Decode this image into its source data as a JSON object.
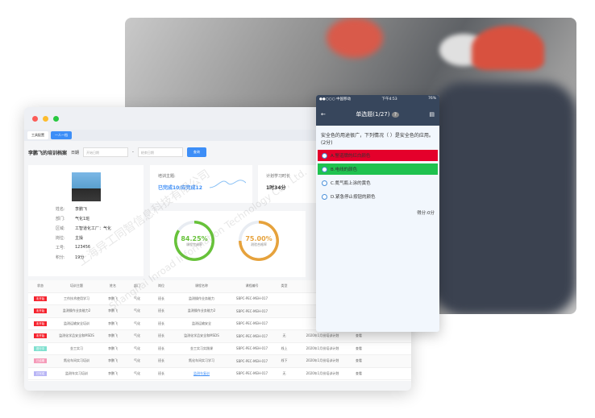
{
  "window": {
    "tabs": [
      {
        "label": "工具配置"
      },
      {
        "label": "一人一档"
      }
    ],
    "title": "李鹏飞的培训档案",
    "date_label": "日期",
    "start_placeholder": "开始日期",
    "end_placeholder": "结束日期",
    "search_label": "查询"
  },
  "profile": {
    "fields": [
      {
        "k": "姓名:",
        "v": "李鹏飞"
      },
      {
        "k": "部门:",
        "v": "气化1班"
      },
      {
        "k": "区域:",
        "v": "工智道化工厂：气化"
      },
      {
        "k": "岗位:",
        "v": "主操"
      },
      {
        "k": "工号:",
        "v": "123456"
      },
      {
        "k": "积分:",
        "v": "19分"
      }
    ]
  },
  "summary": {
    "topic_label": "培训主题:",
    "topic_value": "已完成10/应完成12",
    "hours_label": "计划学习时长",
    "hours_value": "1时34分"
  },
  "rings": [
    {
      "value": "84.25%",
      "label": "课程完成率",
      "percent": 84.25,
      "color": "#67c23a"
    },
    {
      "value": "75.00%",
      "label": "测验合格率",
      "percent": 75,
      "color": "#e6a23c"
    }
  ],
  "table": {
    "headers": [
      "状态",
      "培训主题",
      "姓名",
      "部门",
      "岗位",
      "课程名称",
      "课程编号",
      "类型",
      "计划",
      "备注"
    ],
    "rows": [
      {
        "status": "未开始",
        "color": "#f5222d",
        "cells": [
          "工作技术使用学习",
          "李鹏飞",
          "气化",
          "班长",
          "监测操作业务能力",
          "SBPC-PEC-MEH-017",
          "",
          "",
          ""
        ]
      },
      {
        "status": "未开始",
        "color": "#f5222d",
        "cells": [
          "监测操作业务能力2",
          "李鹏飞",
          "气化",
          "班长",
          "监测操作业务能力2",
          "SBPC-PEC-MEH-017",
          "",
          "",
          ""
        ]
      },
      {
        "status": "未开始",
        "color": "#f5222d",
        "cells": [
          "监测运输安全培训",
          "李鹏飞",
          "气化",
          "班长",
          "监测运输安全",
          "SBPC-PEC-MEH-017",
          "",
          "",
          ""
        ]
      },
      {
        "status": "未开始",
        "color": "#f5222d",
        "cells": [
          "监测化学品安全和MSDS",
          "李鹏飞",
          "气化",
          "班长",
          "监测化学品安全和MSDS",
          "SBPC-PEC-MEH-017",
          "无",
          "2020年1月份培训计划",
          "查看"
        ]
      },
      {
        "status": "进行中",
        "color": "#7fe0cf",
        "cells": [
          "金工实习",
          "李鹏飞",
          "气化",
          "班长",
          "金工实习实践课",
          "SBPC-PEC-MEH-017",
          "线上",
          "2020年1月份培训计划",
          "查看"
        ]
      },
      {
        "status": "已逾期",
        "color": "#f59ab8",
        "cells": [
          "氮化车间实习培训",
          "李鹏飞",
          "气化",
          "班长",
          "氮化车间实习学习",
          "SBPC-PEC-MEH-017",
          "线下",
          "2020年1月份培训计划",
          "查看"
        ]
      },
      {
        "status": "已完成",
        "color": "#b8b5f5",
        "cells": [
          "监测车实习培训",
          "李鹏飞",
          "气化",
          "班长",
          "监测车复训",
          "SBPC-PEC-MEH-017",
          "无",
          "2020年1月份培训计划",
          "查看"
        ]
      }
    ]
  },
  "phone": {
    "carrier": "●●○○○ 中国移动",
    "time": "下午4:53",
    "battery": "76%",
    "title": "单选题(1/27)",
    "question": "安全色的用途很广，下列情况（ ）是安全色的应用。(2分)",
    "options": [
      {
        "label": "A.警道牌的红白颜色",
        "state": "wrong"
      },
      {
        "label": "B.电线的颜色",
        "state": "correct"
      },
      {
        "label": "C.氮气瓶上涂的黄色",
        "state": "none"
      },
      {
        "label": "D.紧急停止按钮的颜色",
        "state": "none"
      }
    ],
    "score": "得分:0分"
  },
  "watermark": {
    "cn": "上海异工同智信息科技有限公司",
    "en": "Shanghai Inroad Information Technology Co., Ltd."
  }
}
